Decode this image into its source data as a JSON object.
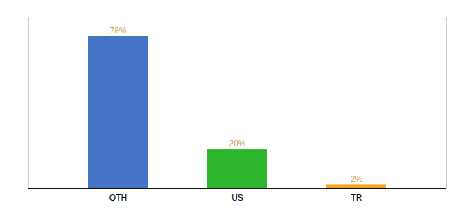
{
  "chart_data": {
    "type": "bar",
    "categories": [
      "OTH",
      "US",
      "TR"
    ],
    "values": [
      78,
      20,
      2
    ],
    "value_labels": [
      "78%",
      "20%",
      "2%"
    ],
    "data_labels": true,
    "colors": [
      "#4472c4",
      "#2db52d",
      "#f5a623"
    ],
    "ylim": [
      0,
      88
    ],
    "tick_labels": "x",
    "grid": false
  }
}
